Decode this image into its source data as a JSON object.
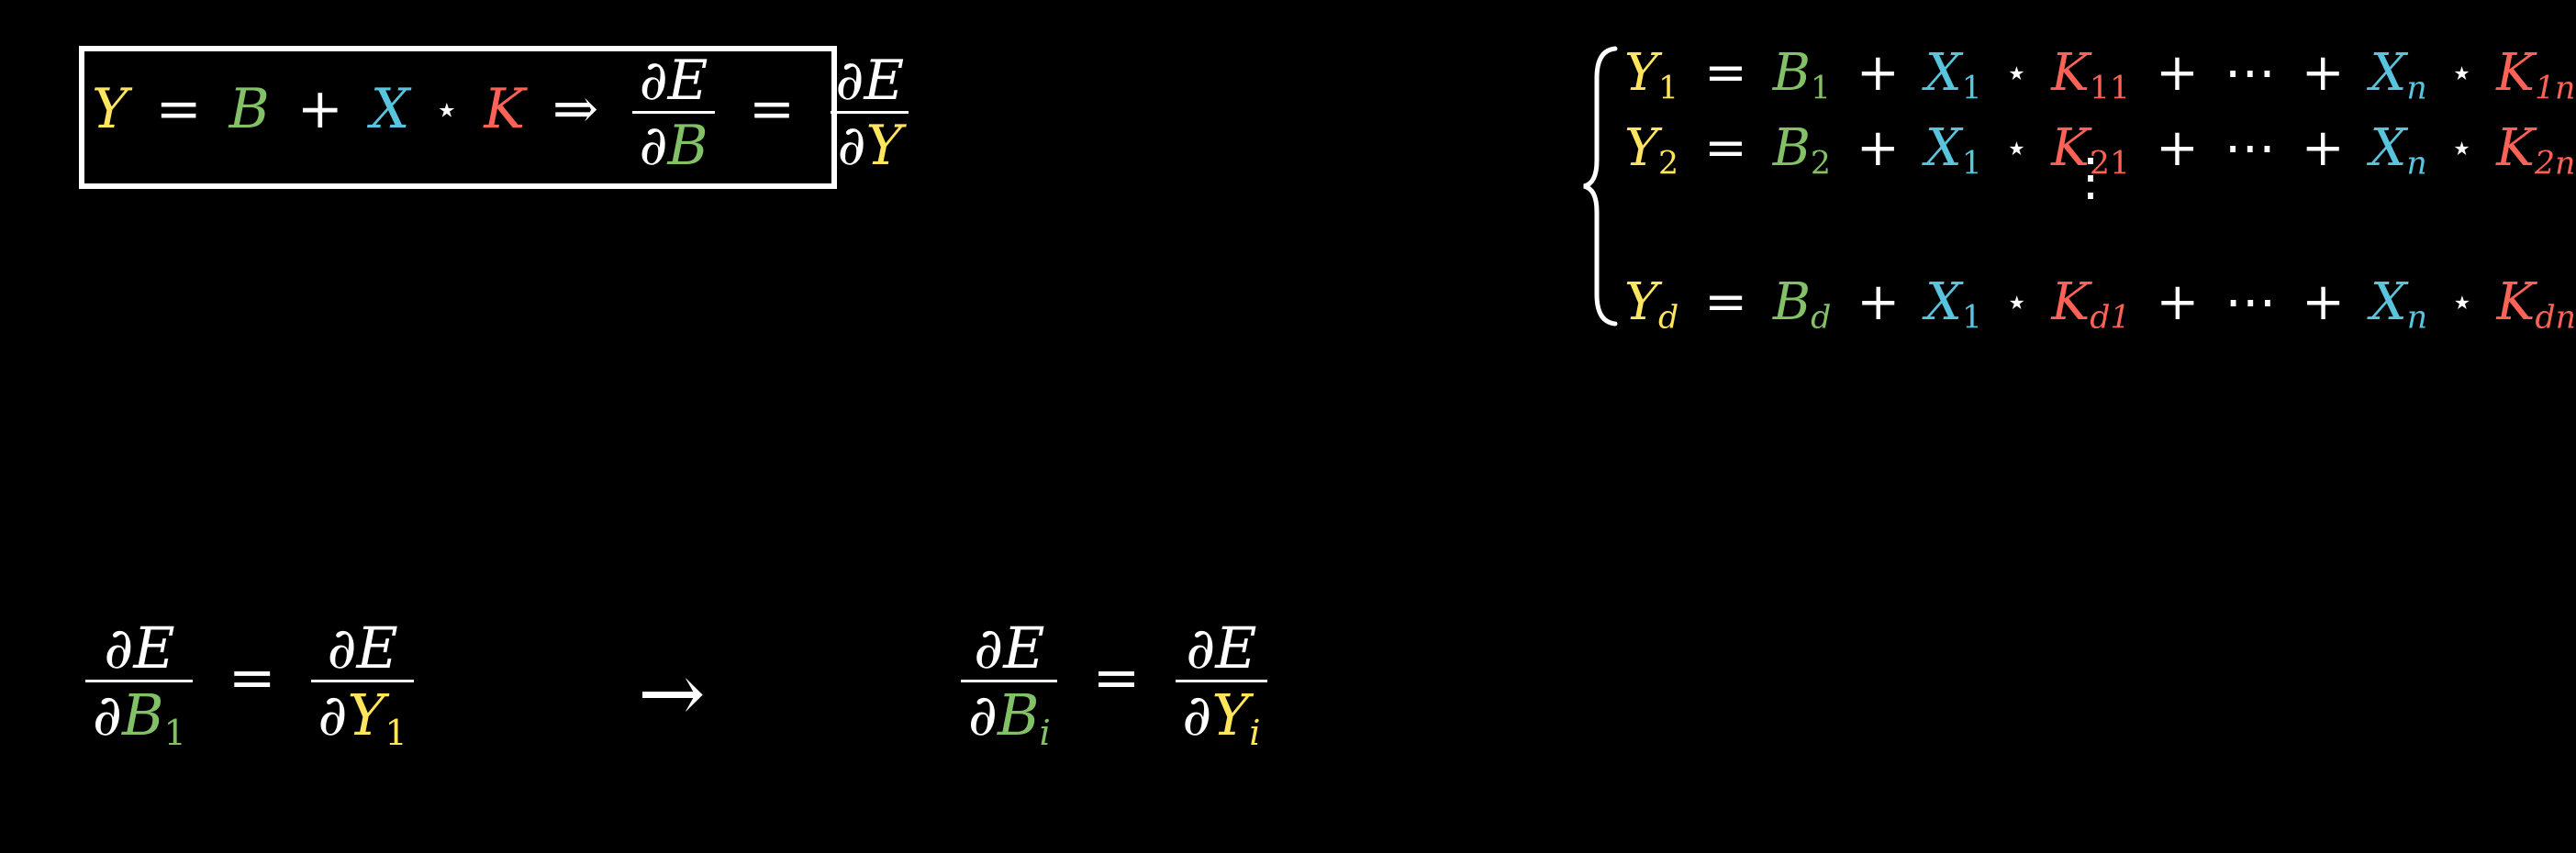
{
  "colors": {
    "Y": "#ffe45e",
    "B": "#83c167",
    "X": "#58c4dd",
    "K": "#fc6255",
    "text": "#ffffff",
    "background": "#000000"
  },
  "symbols": {
    "Y": "Y",
    "B": "B",
    "X": "X",
    "K": "K",
    "E": "E",
    "partial": "∂",
    "equals": "=",
    "plus": "+",
    "star": "⋆",
    "implies": "⇒",
    "cdots": "⋯",
    "vdots": "⋮",
    "arrow": "→"
  },
  "top_equation": {
    "lhs": "Y",
    "b": "B",
    "x": "X",
    "k": "K"
  },
  "system": {
    "rows": [
      {
        "y_sub": "1",
        "b_sub": "1",
        "x1_sub": "1",
        "k1_sub": "11",
        "xn_sub": "n",
        "kn_sub": "1n"
      },
      {
        "y_sub": "2",
        "b_sub": "2",
        "x1_sub": "1",
        "k1_sub": "21",
        "xn_sub": "n",
        "kn_sub": "2n"
      },
      {
        "y_sub": "d",
        "b_sub": "d",
        "x1_sub": "1",
        "k1_sub": "d1",
        "xn_sub": "n",
        "kn_sub": "dn"
      }
    ]
  },
  "bottom_left": {
    "b_sub": "1",
    "y_sub": "1"
  },
  "bottom_right": {
    "b_sub": "i",
    "y_sub": "i"
  }
}
